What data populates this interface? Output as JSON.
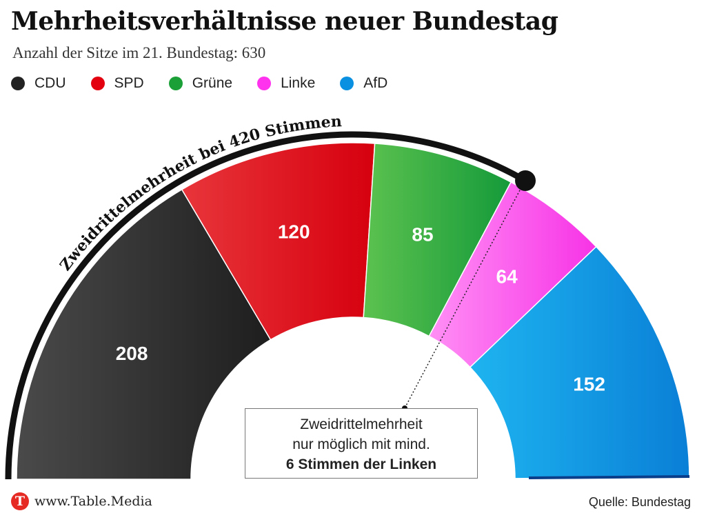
{
  "title": "Mehrheitsverhältnisse neuer Bundestag",
  "subtitle": "Anzahl der Sitze im 21. Bundestag: 630",
  "legend": [
    {
      "label": "CDU",
      "color": "#222222"
    },
    {
      "label": "SPD",
      "color": "#e3000f"
    },
    {
      "label": "Grüne",
      "color": "#1aa037"
    },
    {
      "label": "Linke",
      "color": "#ff33ee"
    },
    {
      "label": "AfD",
      "color": "#0a90e0"
    }
  ],
  "chart_data": {
    "type": "pie",
    "variant": "semicircle-parliament",
    "total": 630,
    "series": [
      {
        "name": "CDU",
        "value": 208,
        "color": "#222222"
      },
      {
        "name": "SPD",
        "value": 120,
        "color": "#e3000f"
      },
      {
        "name": "Grüne",
        "value": 85,
        "color": "#1aa037"
      },
      {
        "name": "Linke",
        "value": 64,
        "color": "#ff33ee"
      },
      {
        "name": "AfD",
        "value": 152,
        "color": "#0a90e0"
      }
    ],
    "threshold": {
      "value": 420,
      "label": "Zweidrittelmehrheit bei 420 Stimmen"
    }
  },
  "callout": {
    "line1": "Zweidrittelmehrheit",
    "line2": "nur möglich mit mind.",
    "line3": "6 Stimmen der Linken"
  },
  "footer": {
    "logo_letter": "T",
    "site": "www.Table.Media",
    "source": "Quelle: Bundestag"
  }
}
